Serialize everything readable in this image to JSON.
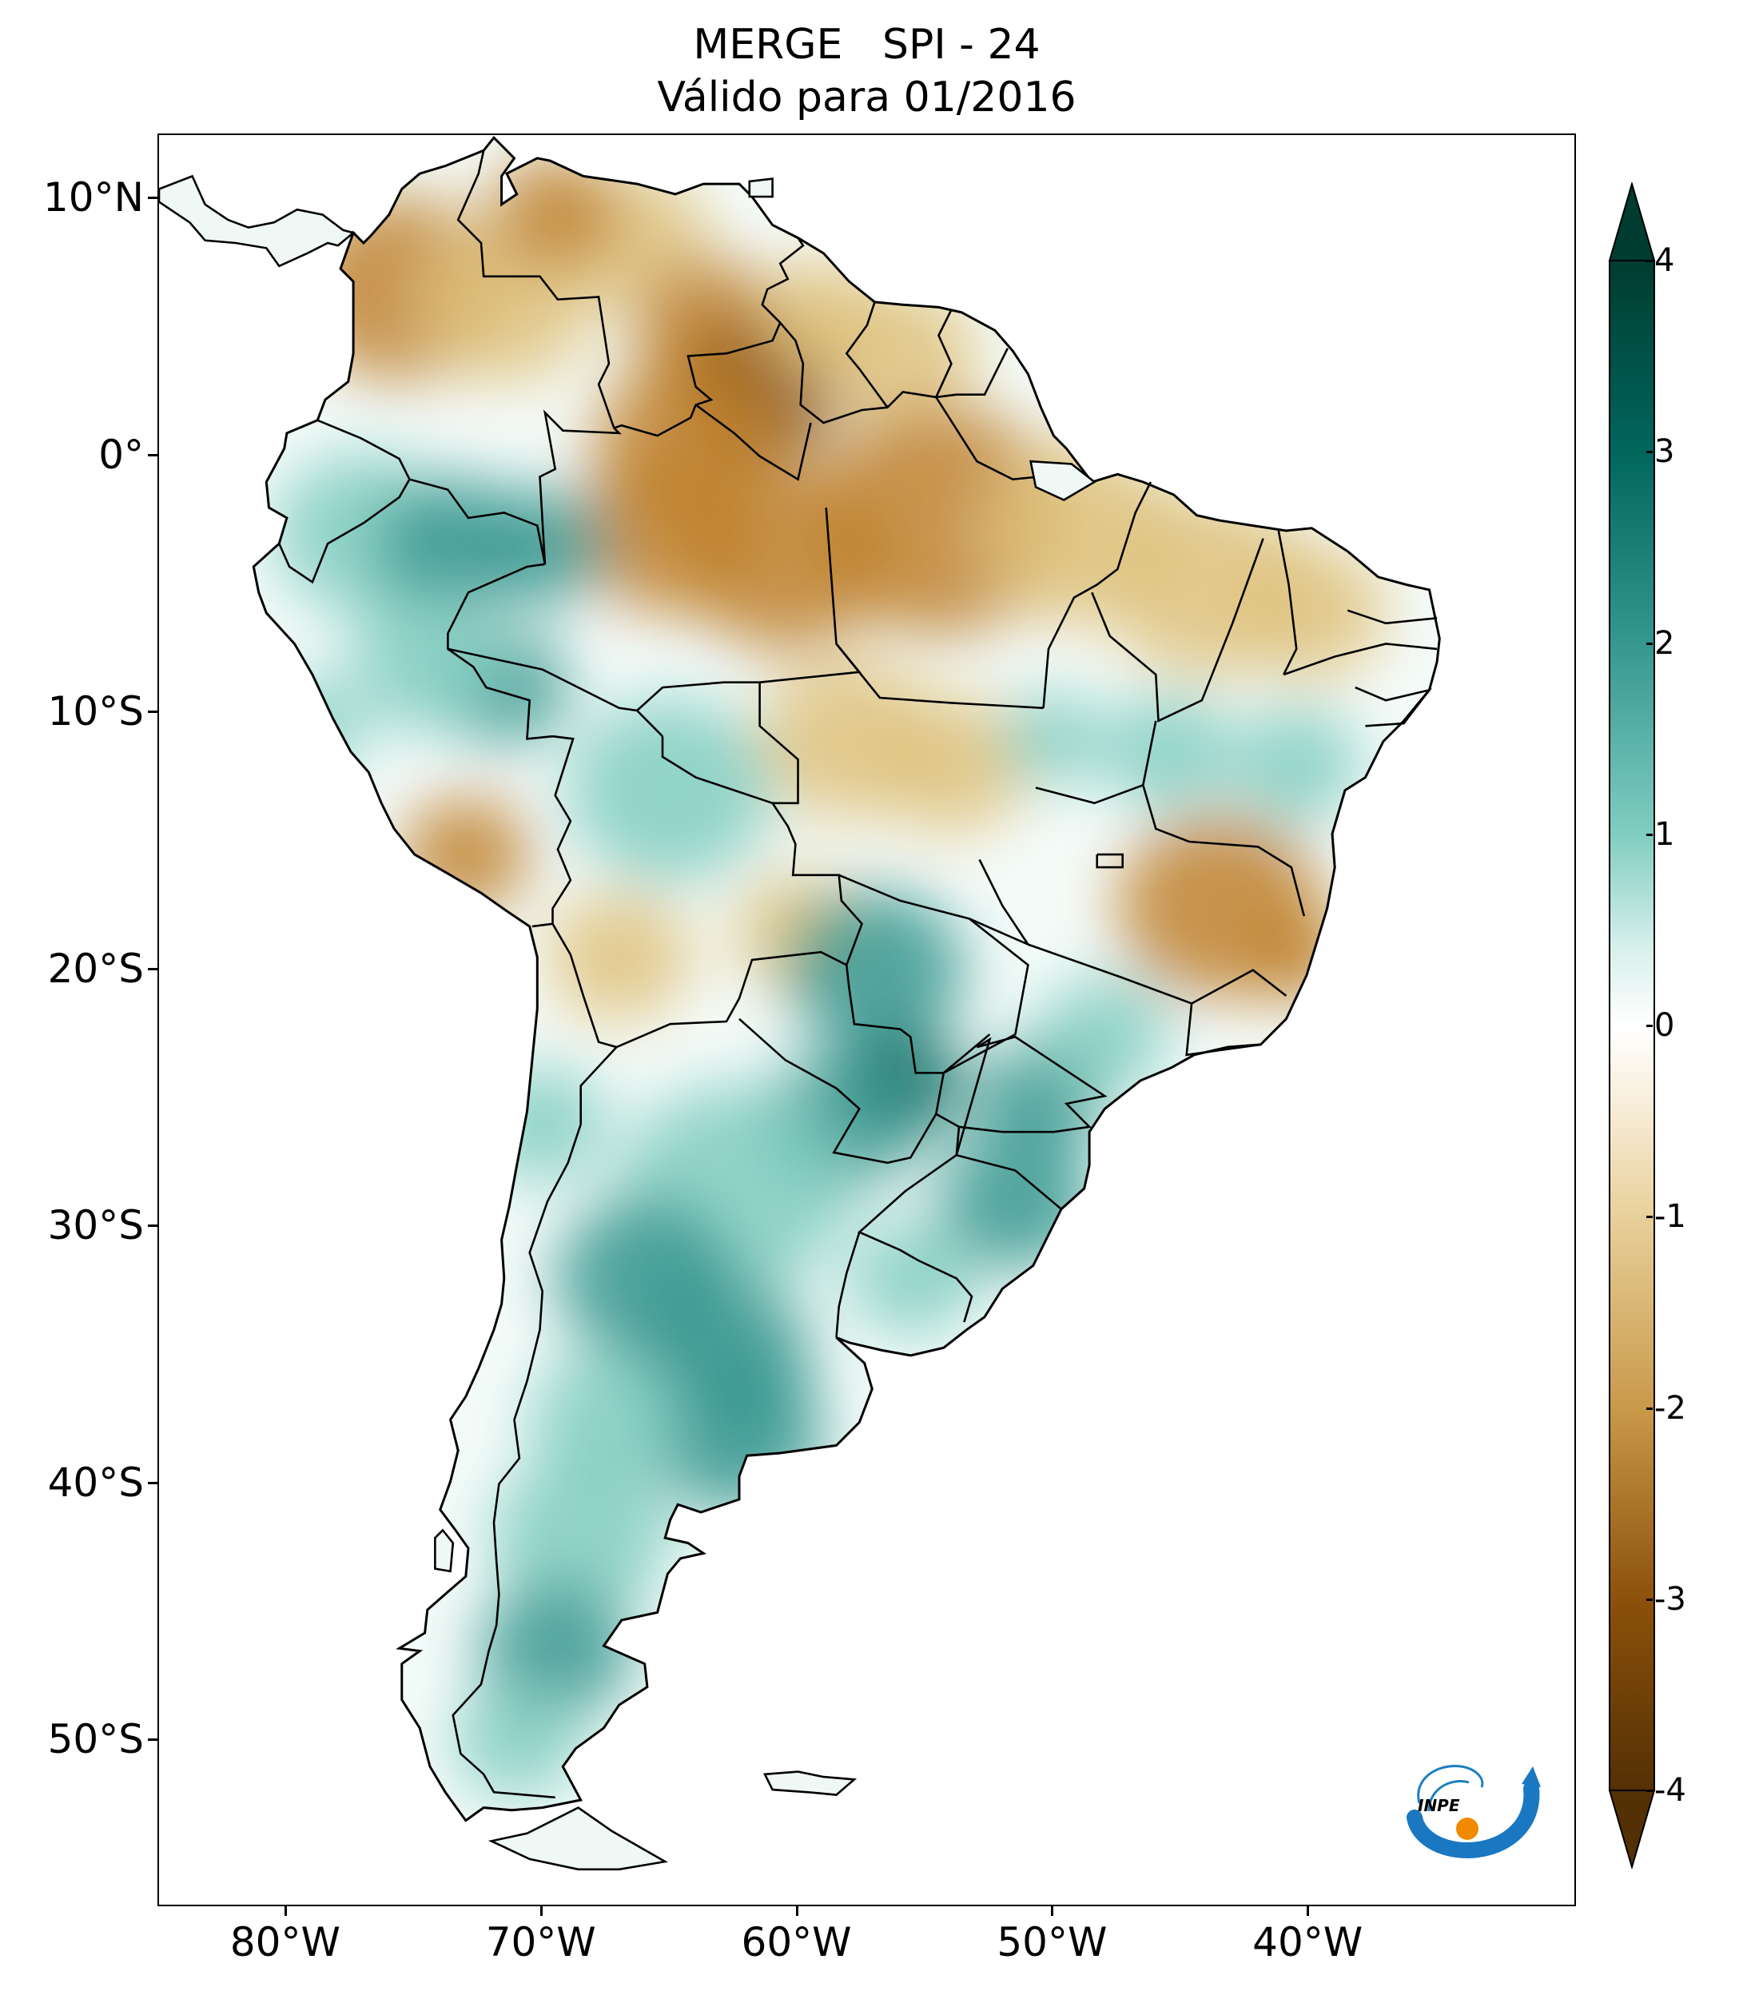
{
  "title": {
    "line1": "MERGE   SPI - 24",
    "line2": "Válido para 01/2016"
  },
  "map": {
    "lon_range": [
      -85,
      -29.5
    ],
    "lat_range": [
      -56.5,
      12.5
    ],
    "lat_ticks": [
      {
        "value": 10,
        "label": "10°N"
      },
      {
        "value": 0,
        "label": "0°"
      },
      {
        "value": -10,
        "label": "10°S"
      },
      {
        "value": -20,
        "label": "20°S"
      },
      {
        "value": -30,
        "label": "30°S"
      },
      {
        "value": -40,
        "label": "40°S"
      },
      {
        "value": -50,
        "label": "50°S"
      }
    ],
    "lon_ticks": [
      {
        "value": -80,
        "label": "80°W"
      },
      {
        "value": -70,
        "label": "70°W"
      },
      {
        "value": -60,
        "label": "60°W"
      },
      {
        "value": -50,
        "label": "50°W"
      },
      {
        "value": -40,
        "label": "40°W"
      }
    ],
    "colors": {
      "dry_strong": "#8c510a",
      "dry": "#bf812d",
      "dry_light": "#dfc27d",
      "neutral": "#ffffff",
      "wet_light": "#80cdc1",
      "wet": "#35978f",
      "wet_strong": "#01665e",
      "border": "#000000"
    }
  },
  "colorbar": {
    "min": -4,
    "max": 4,
    "ticks": [
      "4",
      "3",
      "2",
      "1",
      "0",
      "-1",
      "-2",
      "-3",
      "-4"
    ],
    "extend": "both",
    "colors_top_to_bottom": [
      "#003c30",
      "#01665e",
      "#35978f",
      "#80cdc1",
      "#c7eae5",
      "#ffffff",
      "#f6e8c3",
      "#dfc27d",
      "#bf812d",
      "#8c510a",
      "#543005"
    ]
  },
  "logo": {
    "text": "INPE",
    "icon": "inpe-logo-icon"
  }
}
